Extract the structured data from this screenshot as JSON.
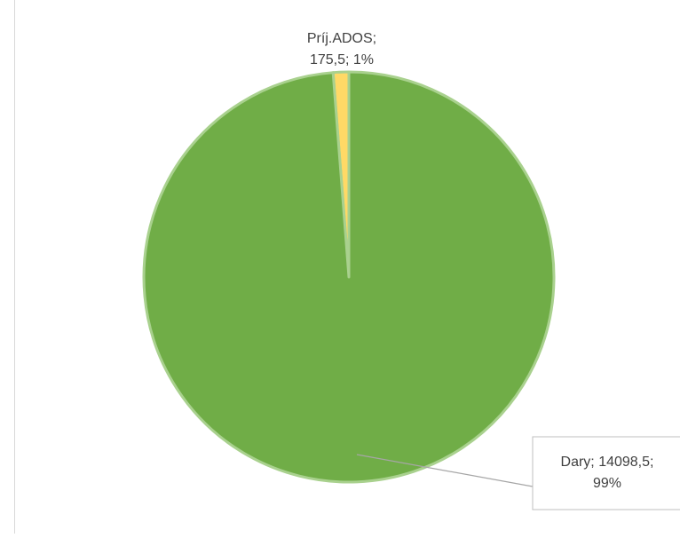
{
  "chart_data": {
    "type": "pie",
    "title": "",
    "slices": [
      {
        "label": "Príj.ADOS",
        "value": 175.5,
        "percent": "1%",
        "value_text": "175,5",
        "color": "#ffd966",
        "label_lines": [
          "Príj.ADOS;",
          "175,5; 1%"
        ]
      },
      {
        "label": "Dary",
        "value": 14098.5,
        "percent": "99%",
        "value_text": "14098,5",
        "color": "#70ad47",
        "label_lines": [
          "Dary; 14098,5;",
          "99%"
        ]
      }
    ],
    "border_color": "#a9d18e",
    "legend": "none"
  }
}
